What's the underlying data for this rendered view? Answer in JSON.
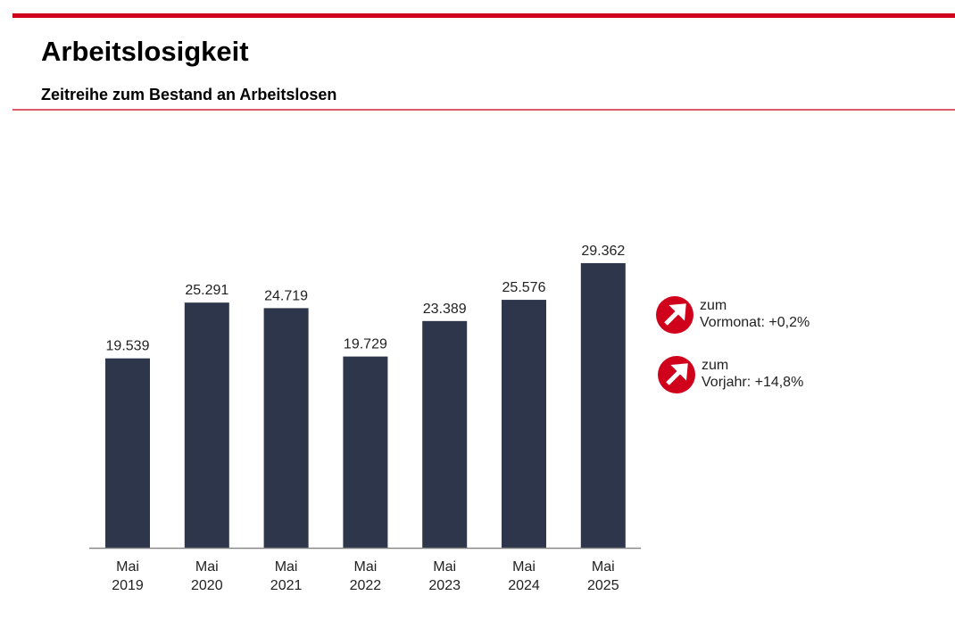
{
  "header": {
    "title": "Arbeitslosigkeit",
    "subtitle": "Zeitreihe zum Bestand an Arbeitslosen"
  },
  "colors": {
    "accent": "#d0021b",
    "bar": "#2e364b"
  },
  "chart_data": {
    "type": "bar",
    "categories": [
      [
        "Mai",
        "2019"
      ],
      [
        "Mai",
        "2020"
      ],
      [
        "Mai",
        "2021"
      ],
      [
        "Mai",
        "2022"
      ],
      [
        "Mai",
        "2023"
      ],
      [
        "Mai",
        "2024"
      ],
      [
        "Mai",
        "2025"
      ]
    ],
    "values": [
      19539,
      25291,
      24719,
      19729,
      23389,
      25576,
      29362
    ],
    "value_labels": [
      "19.539",
      "25.291",
      "24.719",
      "19.729",
      "23.389",
      "25.576",
      "29.362"
    ],
    "ylim": [
      0,
      30000
    ],
    "grid": false
  },
  "indicators": [
    {
      "icon": "arrow-up-right-icon",
      "line1": "zum",
      "label": "Vormonat:",
      "value": "+0,2%"
    },
    {
      "icon": "arrow-up-right-icon",
      "line1": "zum",
      "label": "Vorjahr:",
      "value": "+14,8%"
    }
  ]
}
